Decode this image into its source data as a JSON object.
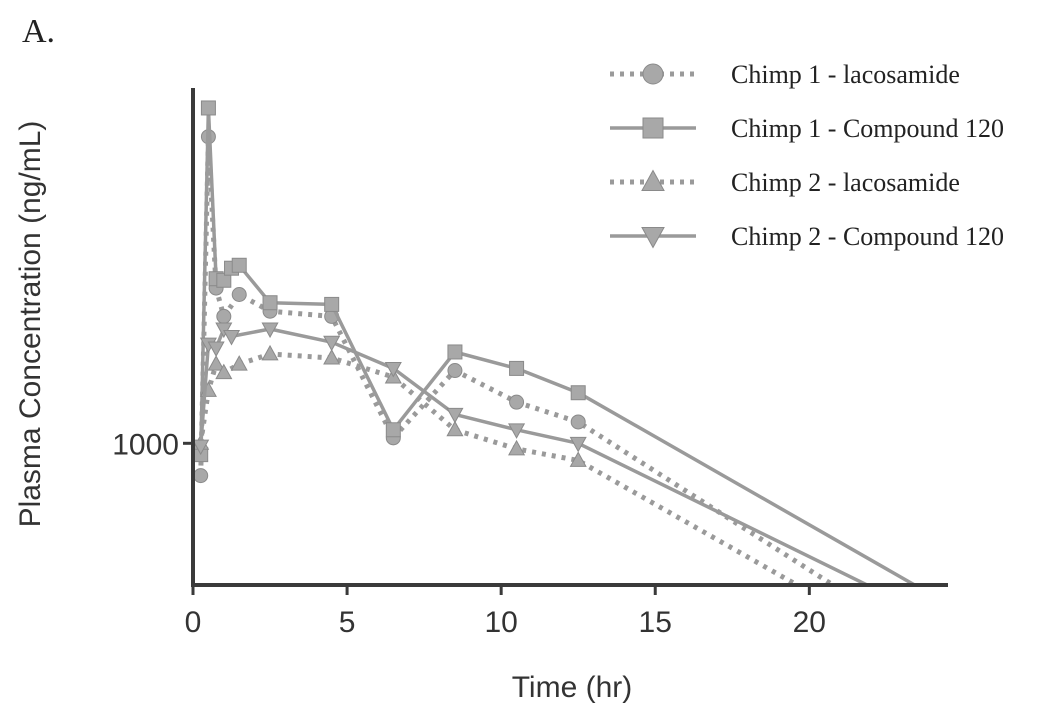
{
  "panel_label": "A.",
  "chart_data": {
    "type": "line",
    "title": "",
    "xlabel": "Time (hr)",
    "ylabel": "Plasma Concentration (ng/mL)",
    "xlim": [
      0,
      24.5
    ],
    "ylim": [
      600,
      3600
    ],
    "y_scale": "log",
    "x_ticks": [
      0,
      5,
      10,
      15,
      20
    ],
    "x_tick_labels": [
      "0",
      "5",
      "10",
      "15",
      "20"
    ],
    "y_ticks": [
      1000
    ],
    "y_tick_labels": [
      "1000"
    ],
    "grid": false,
    "legend_position": "top-right",
    "series": [
      {
        "name": "Chimp 1 - lacosamide",
        "line": "dotted",
        "marker": "circle",
        "color": "#9a9a9a",
        "x": [
          0.25,
          0.5,
          0.75,
          1,
          1.5,
          2.5,
          4.5,
          6.5,
          8.5,
          10.5,
          12.5,
          24.5
        ],
        "y": [
          890,
          3020,
          1750,
          1580,
          1710,
          1610,
          1580,
          1020,
          1300,
          1160,
          1080,
          460
        ]
      },
      {
        "name": "Chimp 1 - Compound 120",
        "line": "solid",
        "marker": "square",
        "color": "#9a9a9a",
        "x": [
          0.25,
          0.5,
          0.75,
          1,
          1.25,
          1.5,
          2.5,
          4.5,
          6.5,
          8.5,
          10.5,
          12.5,
          24.5
        ],
        "y": [
          960,
          3350,
          1810,
          1800,
          1880,
          1900,
          1660,
          1650,
          1050,
          1390,
          1310,
          1200,
          560
        ]
      },
      {
        "name": "Chimp 2 - lacosamide",
        "line": "dotted",
        "marker": "triangle-up",
        "color": "#9a9a9a",
        "x": [
          0.25,
          0.5,
          0.75,
          1,
          1.5,
          2.5,
          4.5,
          6.5,
          8.5,
          10.5,
          12.5,
          24.5
        ],
        "y": [
          1000,
          1210,
          1330,
          1290,
          1330,
          1380,
          1360,
          1270,
          1050,
          980,
          940,
          440
        ]
      },
      {
        "name": "Chimp 2 - Compound 120",
        "line": "solid",
        "marker": "triangle-down",
        "color": "#9a9a9a",
        "x": [
          0.25,
          0.5,
          0.75,
          1,
          1.25,
          2.5,
          4.5,
          6.5,
          8.5,
          10.5,
          12.5,
          24.5
        ],
        "y": [
          990,
          1430,
          1410,
          1510,
          1470,
          1510,
          1440,
          1310,
          1110,
          1050,
          1000,
          520
        ]
      }
    ]
  }
}
